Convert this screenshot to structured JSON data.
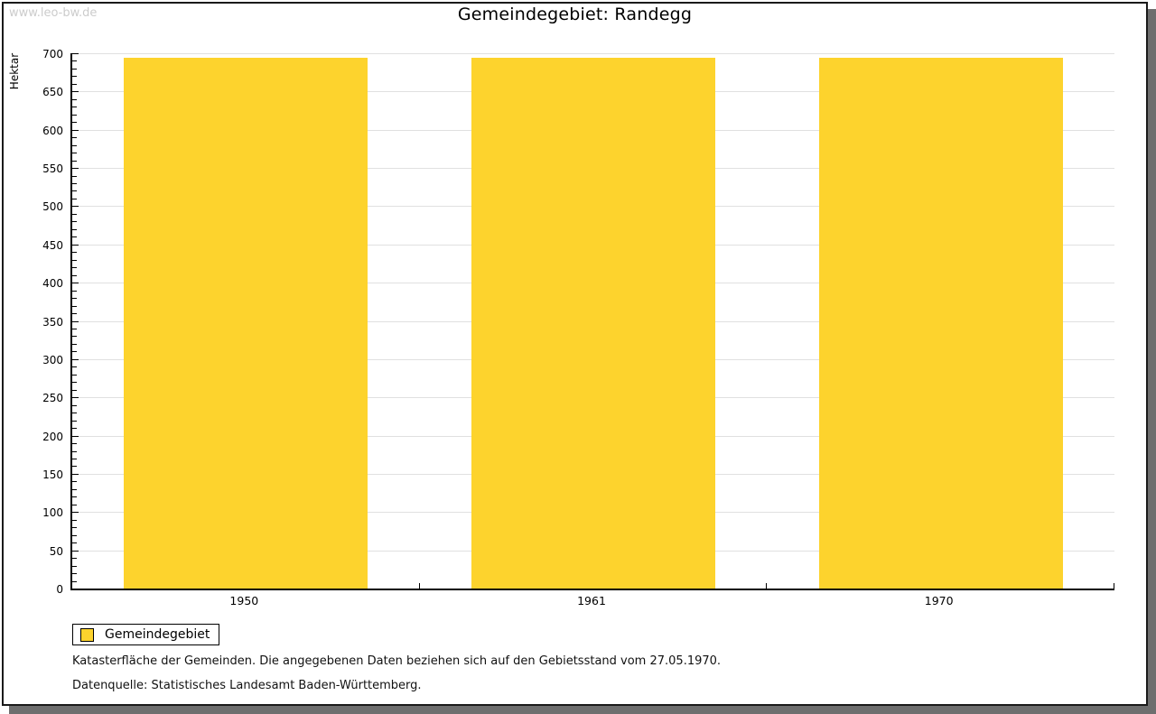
{
  "watermark": "www.leo-bw.de",
  "title": "Gemeindegebiet: Randegg",
  "chart_data": {
    "type": "bar",
    "title": "Gemeindegebiet: Randegg",
    "categories": [
      "1950",
      "1961",
      "1970"
    ],
    "series": [
      {
        "name": "Gemeindegebiet",
        "values": [
          694,
          694,
          694
        ]
      }
    ],
    "xlabel": "",
    "ylabel": "Hektar",
    "ylim": [
      0,
      700
    ],
    "ytick_step": 50,
    "yminor_step": 10,
    "grid": true,
    "legend_position": "bottom-left",
    "bar_color": "#FDD32D",
    "gridline_color": "#e0e0e0"
  },
  "legend": {
    "items": [
      {
        "label": "Gemeindegebiet",
        "color": "#FDD32D"
      }
    ]
  },
  "footnotes": [
    "Katasterfläche der Gemeinden. Die angegebenen Daten beziehen sich auf den Gebietsstand vom 27.05.1970.",
    "Datenquelle: Statistisches Landesamt Baden-Württemberg."
  ]
}
